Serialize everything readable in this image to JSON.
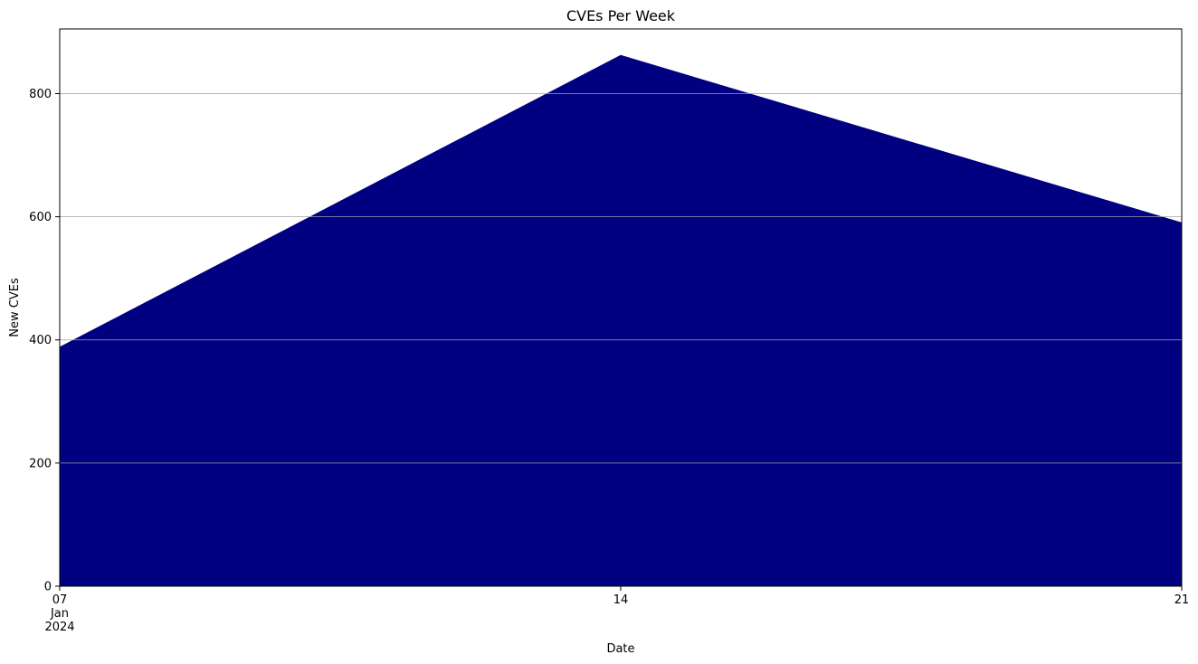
{
  "chart_data": {
    "type": "area",
    "title": "CVEs Per Week",
    "xlabel": "Date",
    "ylabel": "New CVEs",
    "x": [
      "2024-01-07",
      "2024-01-14",
      "2024-01-21"
    ],
    "series": [
      {
        "values": [
          388,
          862,
          590
        ],
        "color": "#000080"
      }
    ],
    "xlim": [
      "2024-01-07",
      "2024-01-21"
    ],
    "ylim": [
      0,
      905
    ],
    "x_ticks": [
      {
        "x": "2024-01-07",
        "labels": [
          "07",
          "Jan",
          "2024"
        ]
      },
      {
        "x": "2024-01-14",
        "labels": [
          "14"
        ]
      },
      {
        "x": "2024-01-21",
        "labels": [
          "21"
        ]
      }
    ],
    "y_ticks": [
      0,
      200,
      400,
      600,
      800
    ],
    "y_tick_labels": [
      "0",
      "200",
      "400",
      "600",
      "800"
    ],
    "grid": "y",
    "grid_color": "#b0b0b0",
    "legend": "none"
  }
}
